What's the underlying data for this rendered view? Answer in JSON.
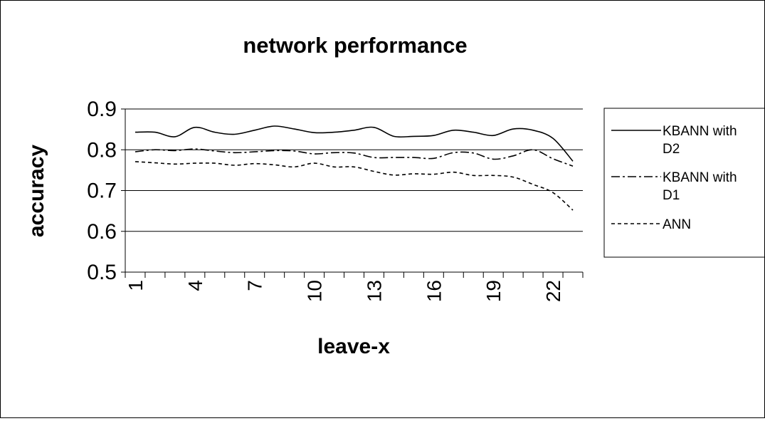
{
  "chart_data": {
    "type": "line",
    "title": "network performance",
    "xlabel": "leave-x",
    "ylabel": "accuracy",
    "ylim": [
      0.5,
      0.9
    ],
    "yticks": [
      "0.5",
      "0.6",
      "0.7",
      "0.8",
      "0.9"
    ],
    "x": [
      1,
      2,
      3,
      4,
      5,
      6,
      7,
      8,
      9,
      10,
      11,
      12,
      13,
      14,
      15,
      16,
      17,
      18,
      19,
      20,
      21,
      22,
      23
    ],
    "xtick_labels": [
      "1",
      "4",
      "7",
      "10",
      "13",
      "16",
      "19",
      "22"
    ],
    "xtick_positions": [
      1,
      4,
      7,
      10,
      13,
      16,
      19,
      22
    ],
    "grid": "horizontal",
    "legend_position": "right",
    "series": [
      {
        "name": "KBANN with D2",
        "line_style": "solid",
        "values": [
          0.843,
          0.843,
          0.832,
          0.855,
          0.843,
          0.838,
          0.848,
          0.858,
          0.851,
          0.842,
          0.843,
          0.848,
          0.855,
          0.833,
          0.833,
          0.835,
          0.848,
          0.843,
          0.835,
          0.851,
          0.848,
          0.828,
          0.772
        ]
      },
      {
        "name": "KBANN with D1",
        "line_style": "dash-dot",
        "values": [
          0.795,
          0.8,
          0.798,
          0.802,
          0.797,
          0.793,
          0.795,
          0.798,
          0.797,
          0.79,
          0.793,
          0.792,
          0.781,
          0.781,
          0.781,
          0.779,
          0.793,
          0.792,
          0.777,
          0.785,
          0.8,
          0.778,
          0.76
        ]
      },
      {
        "name": "ANN",
        "line_style": "dotted",
        "values": [
          0.771,
          0.768,
          0.765,
          0.767,
          0.767,
          0.762,
          0.766,
          0.763,
          0.758,
          0.767,
          0.758,
          0.758,
          0.747,
          0.738,
          0.741,
          0.74,
          0.745,
          0.737,
          0.737,
          0.733,
          0.715,
          0.695,
          0.652
        ]
      }
    ]
  }
}
